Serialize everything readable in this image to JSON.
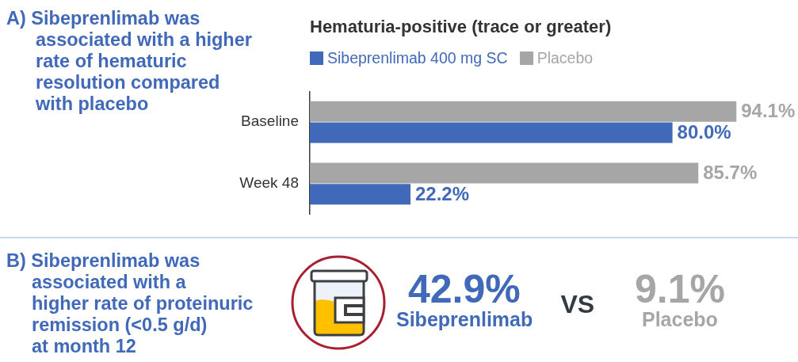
{
  "chart_data": [
    {
      "type": "bar",
      "orientation": "horizontal",
      "title": "A) Sibeprenlimab was\nassociated with a higher\nrate of hematuric\nresolution compared\nwith placebo",
      "subtitle": "Hematuria-positive (trace or greater)",
      "categories": [
        "Baseline",
        "Week 48"
      ],
      "series": [
        {
          "name": "Sibeprenlimab 400 mg SC",
          "color": "#4169b9",
          "values": [
            80.0,
            22.2
          ],
          "value_labels": [
            "80.0%",
            "22.2%"
          ]
        },
        {
          "name": "Placebo",
          "color": "#a6a6a6",
          "values": [
            94.1,
            85.7
          ],
          "value_labels": [
            "94.1%",
            "85.7%"
          ]
        }
      ],
      "legend": "top left",
      "tick_labels": "y"
    },
    {
      "type": "other",
      "title": "B) Sibeprenlimab was\nassociated with a\nhigher rate of proteinuric\nremission (<0.5 g/d)\nat month 12",
      "categories": [
        "Sibeprenlimab",
        "Placebo"
      ],
      "values": [
        42.9,
        9.1
      ],
      "value_labels": [
        "42.9%",
        "9.1%"
      ],
      "colors": [
        "#4169b9",
        "#a6a6a6"
      ],
      "annotations": [
        "VS"
      ]
    }
  ]
}
